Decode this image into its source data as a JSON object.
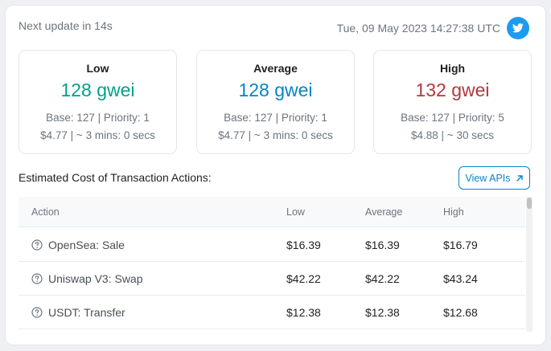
{
  "header": {
    "next_update": "Next update in 14s",
    "timestamp": "Tue, 09 May 2023 14:27:38 UTC",
    "twitter_icon": "twitter-icon"
  },
  "tiers": {
    "low": {
      "label": "Low",
      "value": "128 gwei",
      "base_priority": "Base: 127 | Priority: 1",
      "cost_time": "$4.77 | ~ 3 mins: 0 secs",
      "color": "#00a186"
    },
    "average": {
      "label": "Average",
      "value": "128 gwei",
      "base_priority": "Base: 127 | Priority: 1",
      "cost_time": "$4.77 | ~ 3 mins: 0 secs",
      "color": "#0784c3"
    },
    "high": {
      "label": "High",
      "value": "132 gwei",
      "base_priority": "Base: 127 | Priority: 5",
      "cost_time": "$4.88 | ~ 30 secs",
      "color": "#b1393f"
    }
  },
  "actions_section": {
    "title": "Estimated Cost of Transaction Actions:",
    "view_apis_label": "View APIs",
    "view_apis_icon": "arrow-up-right-icon"
  },
  "table": {
    "columns": [
      "Action",
      "Low",
      "Average",
      "High"
    ],
    "rows": [
      {
        "action": "OpenSea: Sale",
        "low": "$16.39",
        "average": "$16.39",
        "high": "$16.79"
      },
      {
        "action": "Uniswap V3: Swap",
        "low": "$42.22",
        "average": "$42.22",
        "high": "$43.24"
      },
      {
        "action": "USDT: Transfer",
        "low": "$12.38",
        "average": "$12.38",
        "high": "$12.68"
      }
    ]
  }
}
